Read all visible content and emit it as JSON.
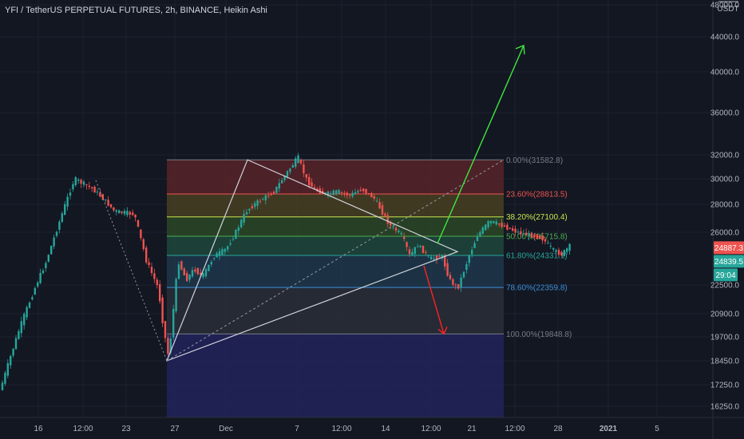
{
  "colors": {
    "background": "#131722",
    "grid": "#1e2230",
    "axis_text": "#b2b5be",
    "candle_up": "#26a69a",
    "candle_down": "#ef5350",
    "triangle": "#d1d4dc",
    "arrow_up": "#3ee83e",
    "arrow_down": "#ff2222",
    "badge_red": "#ef5350",
    "badge_teal": "#26a69a"
  },
  "chart_data": {
    "type": "candlestick",
    "title": "YFI / TetherUS PERPETUAL FUTURES, 2h, BINANCE, Heikin Ashi",
    "ylabel": "USDT",
    "y_ticks": [
      "48000.0",
      "44000.0",
      "40000.0",
      "36000.0",
      "32000.0",
      "30000.0",
      "28000.0",
      "26000.0",
      "22500.0",
      "20900.0",
      "19700.0",
      "18450.0",
      "17250.0",
      "16250.0"
    ],
    "x_ticks": [
      "16",
      "12:00",
      "23",
      "27",
      "Dec",
      "7",
      "12:00",
      "14",
      "12:00",
      "21",
      "12:00",
      "28",
      "2021",
      "5"
    ],
    "price_badges": [
      {
        "label": "24887.3",
        "price": 24887.3,
        "color": "#ef5350"
      },
      {
        "label": "24839.5",
        "price": 24839.5,
        "color": "#26a69a"
      },
      {
        "label": "29:04",
        "price": 23500,
        "color": "#26a69a"
      }
    ],
    "fib_levels": [
      {
        "label": "0.00%(31582.8)",
        "price": 31582.8,
        "color": "#787b86"
      },
      {
        "label": "23.60%(28813.5)",
        "price": 28813.5,
        "color": "#ef5350"
      },
      {
        "label": "38.20%(27100.4)",
        "price": 27100.4,
        "color": "#c8e64b"
      },
      {
        "label": "50.00%(25715.8)",
        "price": 25715.8,
        "color": "#4caf50"
      },
      {
        "label": "61.80%(24331.1)",
        "price": 24331.1,
        "color": "#26a69a"
      },
      {
        "label": "78.60%(22359.8)",
        "price": 22359.8,
        "color": "#3a8fd8"
      },
      {
        "label": "100.00%(19848.8)",
        "price": 19848.8,
        "color": "#787b86"
      }
    ],
    "fib_band_colors": [
      "#5c2429",
      "#4c4322",
      "#2d4a26",
      "#1f4a3d",
      "#1f3a4e",
      "#2c303b",
      "#222460"
    ],
    "candles": {
      "ref_prices": [
        17000,
        20000,
        24000,
        30000,
        29200,
        28500,
        27500,
        27300,
        24000,
        22300,
        20300,
        18800,
        19800,
        24000,
        22800,
        23500,
        23000,
        24300,
        24800,
        25800,
        27500,
        28000,
        29000,
        31800,
        30000,
        29200,
        28800,
        29000,
        28700,
        29200,
        28500,
        26500,
        25800,
        24300,
        25100,
        24100,
        24300,
        22800,
        22300,
        23700,
        25800,
        26800,
        26500,
        26000,
        25800,
        25600,
        24700,
        24400,
        25000
      ],
      "ref_x": [
        2,
        25,
        60,
        95,
        118,
        130,
        145,
        170,
        185,
        200,
        206,
        212,
        216,
        225,
        235,
        245,
        255,
        270,
        285,
        295,
        310,
        320,
        345,
        375,
        385,
        395,
        410,
        425,
        440,
        455,
        470,
        490,
        505,
        515,
        525,
        540,
        555,
        565,
        575,
        585,
        600,
        615,
        630,
        650,
        665,
        680,
        695,
        705,
        715
      ]
    },
    "triangle": {
      "apex": {
        "price": 31582.8
      },
      "base_low": {
        "price": 18450
      },
      "right_vertex": {
        "price": 24600
      }
    },
    "fib_trend_line": {
      "from_price": 18450,
      "to_price": 31582.8
    },
    "arrows": [
      {
        "direction": "up",
        "to_price": 43000
      },
      {
        "direction": "down",
        "to_price": 19848.8
      }
    ]
  }
}
